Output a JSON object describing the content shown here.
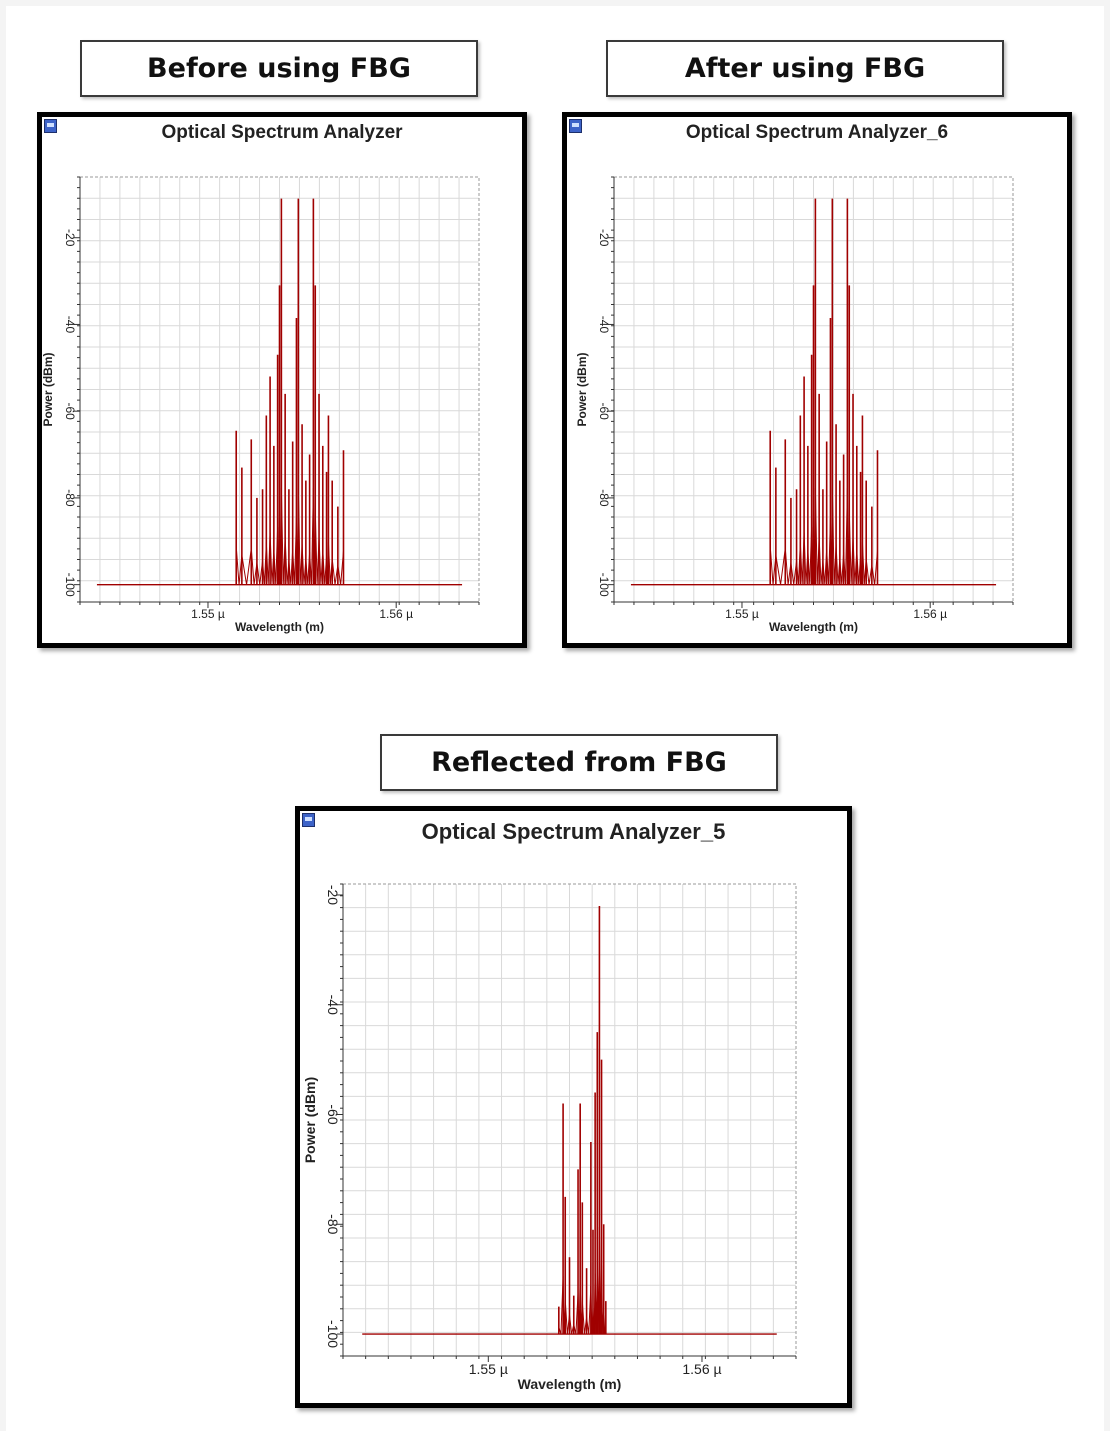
{
  "captions": {
    "before": "Before using FBG",
    "after": "After using FBG",
    "reflected": "Reflected from FBG"
  },
  "colors": {
    "trace": "#a00000",
    "grid": "#d9d9d9",
    "frame": "#000000"
  },
  "chart_data": [
    {
      "type": "line",
      "title": "Optical Spectrum Analyzer",
      "xlabel": "Wavelength (m)",
      "ylabel": "Power (dBm)",
      "xlim": [
        1.5432,
        1.5644
      ],
      "ylim": [
        -104,
        -6
      ],
      "xticks": [
        1.55,
        1.56
      ],
      "xtick_labels": [
        "1.55 µ",
        "1.56 µ"
      ],
      "yticks": [
        -20,
        -40,
        -60,
        -80,
        -100
      ],
      "ytick_labels": [
        "-20",
        "-40",
        "-60",
        "-80",
        "-100"
      ],
      "grid": true,
      "baseline_range": [
        1.5441,
        1.5635
      ],
      "noise_floor": -100,
      "peaks": [
        [
          1.5515,
          -64.5
        ],
        [
          1.5518,
          -73.0
        ],
        [
          1.5523,
          -66.5
        ],
        [
          1.5526,
          -80.0
        ],
        [
          1.5529,
          -78.0
        ],
        [
          1.5531,
          -61.0
        ],
        [
          1.5533,
          -52.0
        ],
        [
          1.5535,
          -68.0
        ],
        [
          1.5537,
          -47.0
        ],
        [
          1.5538,
          -31.0
        ],
        [
          1.5539,
          -11.0
        ],
        [
          1.5541,
          -56.0
        ],
        [
          1.5543,
          -78.0
        ],
        [
          1.5545,
          -67.0
        ],
        [
          1.5547,
          -38.5
        ],
        [
          1.5548,
          -11.0
        ],
        [
          1.555,
          -63.0
        ],
        [
          1.5552,
          -76.0
        ],
        [
          1.5554,
          -70.0
        ],
        [
          1.5556,
          -11.0
        ],
        [
          1.5557,
          -31.0
        ],
        [
          1.5559,
          -56.0
        ],
        [
          1.5561,
          -68.0
        ],
        [
          1.5563,
          -74.0
        ],
        [
          1.5564,
          -61.0
        ],
        [
          1.5566,
          -76.0
        ],
        [
          1.5569,
          -82.0
        ],
        [
          1.5572,
          -69.0
        ]
      ]
    },
    {
      "type": "line",
      "title": "Optical Spectrum Analyzer_6",
      "xlabel": "Wavelength (m)",
      "ylabel": "Power (dBm)",
      "xlim": [
        1.5432,
        1.5644
      ],
      "ylim": [
        -104,
        -6
      ],
      "xticks": [
        1.55,
        1.56
      ],
      "xtick_labels": [
        "1.55 µ",
        "1.56 µ"
      ],
      "yticks": [
        -20,
        -40,
        -60,
        -80,
        -100
      ],
      "ytick_labels": [
        "-20",
        "-40",
        "-60",
        "-80",
        "-100"
      ],
      "grid": true,
      "baseline_range": [
        1.5441,
        1.5635
      ],
      "noise_floor": -100,
      "peaks": [
        [
          1.5515,
          -64.5
        ],
        [
          1.5518,
          -73.0
        ],
        [
          1.5523,
          -66.5
        ],
        [
          1.5526,
          -80.0
        ],
        [
          1.5529,
          -78.0
        ],
        [
          1.5531,
          -61.0
        ],
        [
          1.5533,
          -52.0
        ],
        [
          1.5535,
          -68.0
        ],
        [
          1.5537,
          -47.0
        ],
        [
          1.5538,
          -31.0
        ],
        [
          1.5539,
          -11.0
        ],
        [
          1.5541,
          -56.0
        ],
        [
          1.5543,
          -78.0
        ],
        [
          1.5545,
          -67.0
        ],
        [
          1.5547,
          -38.5
        ],
        [
          1.5548,
          -11.0
        ],
        [
          1.555,
          -63.0
        ],
        [
          1.5552,
          -76.0
        ],
        [
          1.5554,
          -70.0
        ],
        [
          1.5556,
          -11.0
        ],
        [
          1.5557,
          -31.0
        ],
        [
          1.5559,
          -56.0
        ],
        [
          1.5561,
          -68.0
        ],
        [
          1.5563,
          -74.0
        ],
        [
          1.5564,
          -61.0
        ],
        [
          1.5566,
          -76.0
        ],
        [
          1.5569,
          -82.0
        ],
        [
          1.5572,
          -69.0
        ]
      ]
    },
    {
      "type": "line",
      "title": "Optical Spectrum Analyzer_5",
      "xlabel": "Wavelength (m)",
      "ylabel": "Power (dBm)",
      "xlim": [
        1.5432,
        1.5644
      ],
      "ylim": [
        -104,
        -18
      ],
      "xticks": [
        1.55,
        1.56
      ],
      "xtick_labels": [
        "1.55 µ",
        "1.56 µ"
      ],
      "yticks": [
        -20,
        -40,
        -60,
        -80,
        -100
      ],
      "ytick_labels": [
        "-20",
        "-40",
        "-60",
        "-80",
        "-100"
      ],
      "grid": true,
      "baseline_range": [
        1.5441,
        1.5635
      ],
      "noise_floor": -100,
      "peaks": [
        [
          1.5533,
          -95.0
        ],
        [
          1.5535,
          -58.0
        ],
        [
          1.5536,
          -75.0
        ],
        [
          1.5538,
          -86.0
        ],
        [
          1.554,
          -93.0
        ],
        [
          1.5542,
          -70.0
        ],
        [
          1.5543,
          -58.0
        ],
        [
          1.5544,
          -76.0
        ],
        [
          1.5546,
          -88.0
        ],
        [
          1.5548,
          -65.0
        ],
        [
          1.5549,
          -81.0
        ],
        [
          1.555,
          -56.0
        ],
        [
          1.5551,
          -45.0
        ],
        [
          1.5552,
          -22.0
        ],
        [
          1.5553,
          -50.0
        ],
        [
          1.5554,
          -80.0
        ],
        [
          1.5555,
          -94.0
        ]
      ]
    }
  ]
}
